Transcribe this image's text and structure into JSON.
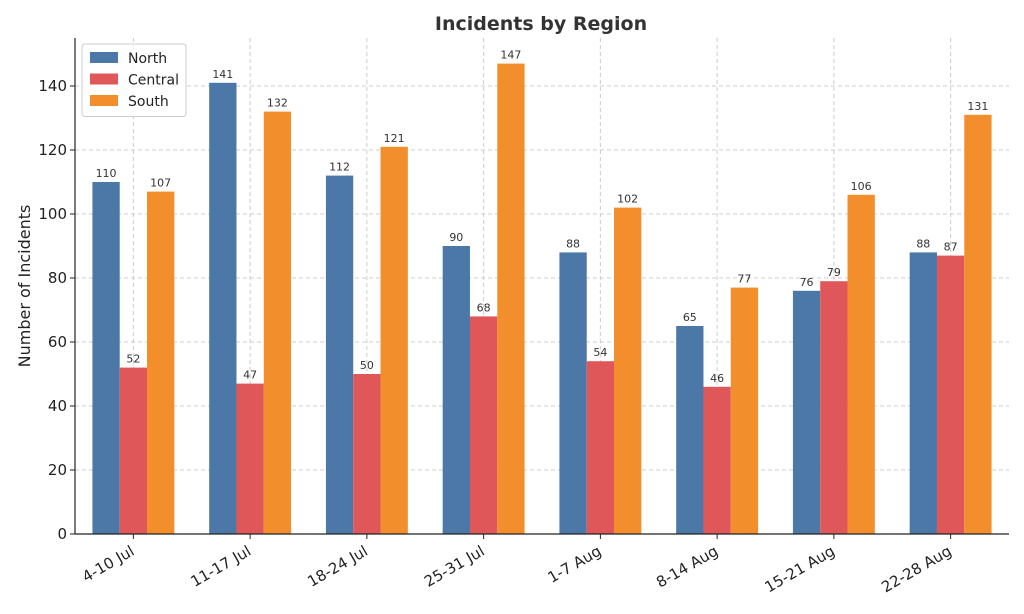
{
  "chart_data": {
    "type": "bar",
    "title": "Incidents by Region",
    "xlabel": "",
    "ylabel": "Number of Incidents",
    "categories": [
      "4-10 Jul",
      "11-17 Jul",
      "18-24 Jul",
      "25-31 Jul",
      "1-7 Aug",
      "8-14 Aug",
      "15-21 Aug",
      "22-28 Aug"
    ],
    "series": [
      {
        "name": "North",
        "color": "#4c78a8",
        "values": [
          110,
          141,
          112,
          90,
          88,
          65,
          76,
          88
        ]
      },
      {
        "name": "Central",
        "color": "#e05759",
        "values": [
          52,
          47,
          50,
          68,
          54,
          46,
          79,
          87
        ]
      },
      {
        "name": "South",
        "color": "#f28e2b",
        "values": [
          107,
          132,
          121,
          147,
          102,
          77,
          106,
          131
        ]
      }
    ],
    "ylim": [
      0,
      155
    ],
    "yticks": [
      0,
      20,
      40,
      60,
      80,
      100,
      120,
      140
    ],
    "grid": true,
    "legend": "top-left",
    "data_labels": true
  }
}
